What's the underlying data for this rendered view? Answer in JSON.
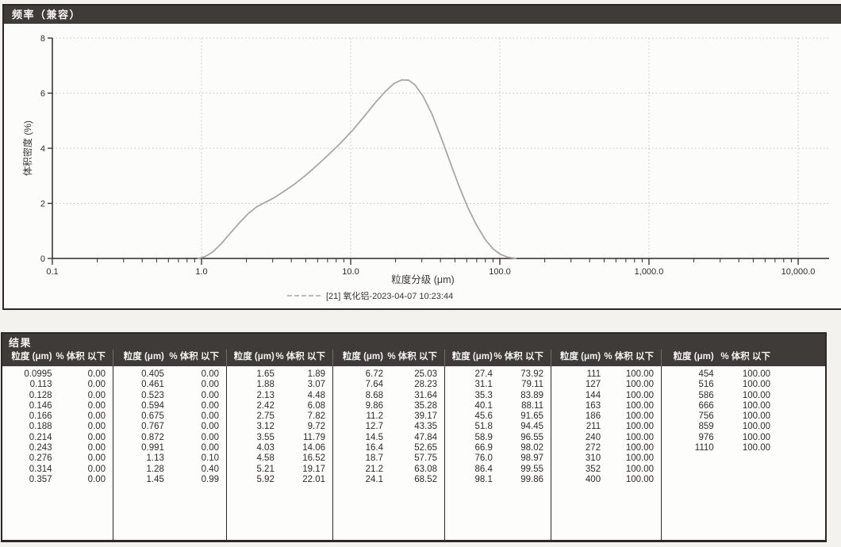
{
  "panel_frequency": {
    "title": "频率（兼容）"
  },
  "chart_data": {
    "type": "line",
    "title": "频率（兼容）",
    "xlabel": "粒度分级 (μm)",
    "ylabel": "体积密度 (%)",
    "x_scale": "log",
    "xlim": [
      0.1,
      10000
    ],
    "ylim": [
      0,
      8
    ],
    "x_ticks": [
      {
        "v": 0.1,
        "label": "0.1"
      },
      {
        "v": 1,
        "label": "1.0"
      },
      {
        "v": 10,
        "label": "10.0"
      },
      {
        "v": 100,
        "label": "100.0"
      },
      {
        "v": 1000,
        "label": "1,000.0"
      },
      {
        "v": 10000,
        "label": "10,000.0"
      }
    ],
    "y_ticks": [
      0,
      2,
      4,
      6,
      8
    ],
    "grid": true,
    "legend_position": "bottom",
    "legend": [
      {
        "label": "[21] 氧化铝-2023-04-07 10:23:44",
        "color": "#a8a7a3"
      }
    ],
    "series": [
      {
        "name": "[21] 氧化铝-2023-04-07 10:23:44",
        "color": "#a8a7a3",
        "points": [
          [
            0.95,
            0.0
          ],
          [
            1.05,
            0.06
          ],
          [
            1.18,
            0.22
          ],
          [
            1.35,
            0.52
          ],
          [
            1.55,
            0.9
          ],
          [
            1.8,
            1.3
          ],
          [
            2.05,
            1.62
          ],
          [
            2.35,
            1.88
          ],
          [
            2.7,
            2.05
          ],
          [
            3.1,
            2.22
          ],
          [
            3.6,
            2.45
          ],
          [
            4.2,
            2.7
          ],
          [
            5.0,
            3.02
          ],
          [
            6.0,
            3.4
          ],
          [
            7.2,
            3.8
          ],
          [
            8.6,
            4.2
          ],
          [
            10.3,
            4.65
          ],
          [
            12.3,
            5.15
          ],
          [
            14.6,
            5.65
          ],
          [
            17.0,
            6.05
          ],
          [
            19.5,
            6.35
          ],
          [
            22.0,
            6.48
          ],
          [
            24.5,
            6.47
          ],
          [
            27.0,
            6.3
          ],
          [
            30.5,
            5.9
          ],
          [
            35.0,
            5.25
          ],
          [
            40.0,
            4.45
          ],
          [
            46.0,
            3.55
          ],
          [
            53.0,
            2.65
          ],
          [
            61.0,
            1.85
          ],
          [
            70.0,
            1.2
          ],
          [
            80.0,
            0.68
          ],
          [
            90.0,
            0.35
          ],
          [
            100.0,
            0.16
          ],
          [
            112.0,
            0.05
          ],
          [
            128.0,
            0.0
          ]
        ]
      }
    ]
  },
  "results": {
    "title": "结果",
    "col_headers": {
      "size": "粒度 (μm)",
      "pct": "% 体积 以下"
    },
    "groups": [
      [
        [
          "0.0995",
          "0.00"
        ],
        [
          "0.113",
          "0.00"
        ],
        [
          "0.128",
          "0.00"
        ],
        [
          "0.146",
          "0.00"
        ],
        [
          "0.166",
          "0.00"
        ],
        [
          "0.188",
          "0.00"
        ],
        [
          "0.214",
          "0.00"
        ],
        [
          "0.243",
          "0.00"
        ],
        [
          "0.276",
          "0.00"
        ],
        [
          "0.314",
          "0.00"
        ],
        [
          "0.357",
          "0.00"
        ]
      ],
      [
        [
          "0.405",
          "0.00"
        ],
        [
          "0.461",
          "0.00"
        ],
        [
          "0.523",
          "0.00"
        ],
        [
          "0.594",
          "0.00"
        ],
        [
          "0.675",
          "0.00"
        ],
        [
          "0.767",
          "0.00"
        ],
        [
          "0.872",
          "0.00"
        ],
        [
          "0.991",
          "0.00"
        ],
        [
          "1.13",
          "0.10"
        ],
        [
          "1.28",
          "0.40"
        ],
        [
          "1.45",
          "0.99"
        ]
      ],
      [
        [
          "1.65",
          "1.89"
        ],
        [
          "1.88",
          "3.07"
        ],
        [
          "2.13",
          "4.48"
        ],
        [
          "2.42",
          "6.08"
        ],
        [
          "2.75",
          "7.82"
        ],
        [
          "3.12",
          "9.72"
        ],
        [
          "3.55",
          "11.79"
        ],
        [
          "4.03",
          "14.06"
        ],
        [
          "4.58",
          "16.52"
        ],
        [
          "5.21",
          "19.17"
        ],
        [
          "5.92",
          "22.01"
        ]
      ],
      [
        [
          "6.72",
          "25.03"
        ],
        [
          "7.64",
          "28.23"
        ],
        [
          "8.68",
          "31.64"
        ],
        [
          "9.86",
          "35.28"
        ],
        [
          "11.2",
          "39.17"
        ],
        [
          "12.7",
          "43.35"
        ],
        [
          "14.5",
          "47.84"
        ],
        [
          "16.4",
          "52.65"
        ],
        [
          "18.7",
          "57.75"
        ],
        [
          "21.2",
          "63.08"
        ],
        [
          "24.1",
          "68.52"
        ]
      ],
      [
        [
          "27.4",
          "73.92"
        ],
        [
          "31.1",
          "79.11"
        ],
        [
          "35.3",
          "83.89"
        ],
        [
          "40.1",
          "88.11"
        ],
        [
          "45.6",
          "91.65"
        ],
        [
          "51.8",
          "94.45"
        ],
        [
          "58.9",
          "96.55"
        ],
        [
          "66.9",
          "98.02"
        ],
        [
          "76.0",
          "98.97"
        ],
        [
          "86.4",
          "99.55"
        ],
        [
          "98.1",
          "99.86"
        ]
      ],
      [
        [
          "111",
          "100.00"
        ],
        [
          "127",
          "100.00"
        ],
        [
          "144",
          "100.00"
        ],
        [
          "163",
          "100.00"
        ],
        [
          "186",
          "100.00"
        ],
        [
          "211",
          "100.00"
        ],
        [
          "240",
          "100.00"
        ],
        [
          "272",
          "100.00"
        ],
        [
          "310",
          "100.00"
        ],
        [
          "352",
          "100.00"
        ],
        [
          "400",
          "100.00"
        ]
      ],
      [
        [
          "454",
          "100.00"
        ],
        [
          "516",
          "100.00"
        ],
        [
          "586",
          "100.00"
        ],
        [
          "666",
          "100.00"
        ],
        [
          "756",
          "100.00"
        ],
        [
          "859",
          "100.00"
        ],
        [
          "976",
          "100.00"
        ],
        [
          "1110",
          "100.00"
        ]
      ]
    ]
  },
  "colors": {
    "header_bar": "#3e3b38",
    "panel_border": "#2b2927",
    "curve": "#a8a7a3",
    "grid": "#c6c5c0",
    "axis": "#2e2c2a",
    "background": "#f3f2ee"
  }
}
